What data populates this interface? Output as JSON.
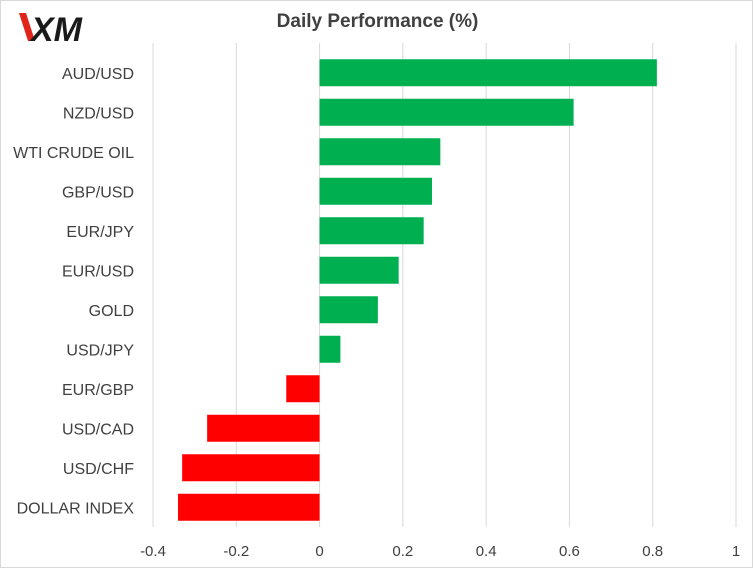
{
  "header": {
    "logo_text": "XM",
    "title": "Daily Performance  (%)"
  },
  "colors": {
    "positive": "#00b050",
    "negative": "#ff0000",
    "gridline": "#d9d9d9",
    "text": "#404040",
    "logo": "#1a1a1a",
    "logo_accent": "#e2231a"
  },
  "chart_data": {
    "type": "bar",
    "orientation": "horizontal",
    "title": "Daily Performance  (%)",
    "categories": [
      "AUD/USD",
      "NZD/USD",
      "WTI CRUDE OIL",
      "GBP/USD",
      "EUR/JPY",
      "EUR/USD",
      "GOLD",
      "USD/JPY",
      "EUR/GBP",
      "USD/CAD",
      "USD/CHF",
      "DOLLAR INDEX"
    ],
    "values": [
      0.81,
      0.61,
      0.29,
      0.27,
      0.25,
      0.19,
      0.14,
      0.05,
      -0.08,
      -0.27,
      -0.33,
      -0.34
    ],
    "xlim": [
      -0.4,
      1
    ],
    "xticks": [
      -0.4,
      -0.2,
      0,
      0.2,
      0.4,
      0.6,
      0.8,
      1
    ],
    "xtick_labels": [
      "-0.4",
      "-0.2",
      "0",
      "0.2",
      "0.4",
      "0.6",
      "0.8",
      "1"
    ],
    "grid": "vertical",
    "legend": "none"
  }
}
